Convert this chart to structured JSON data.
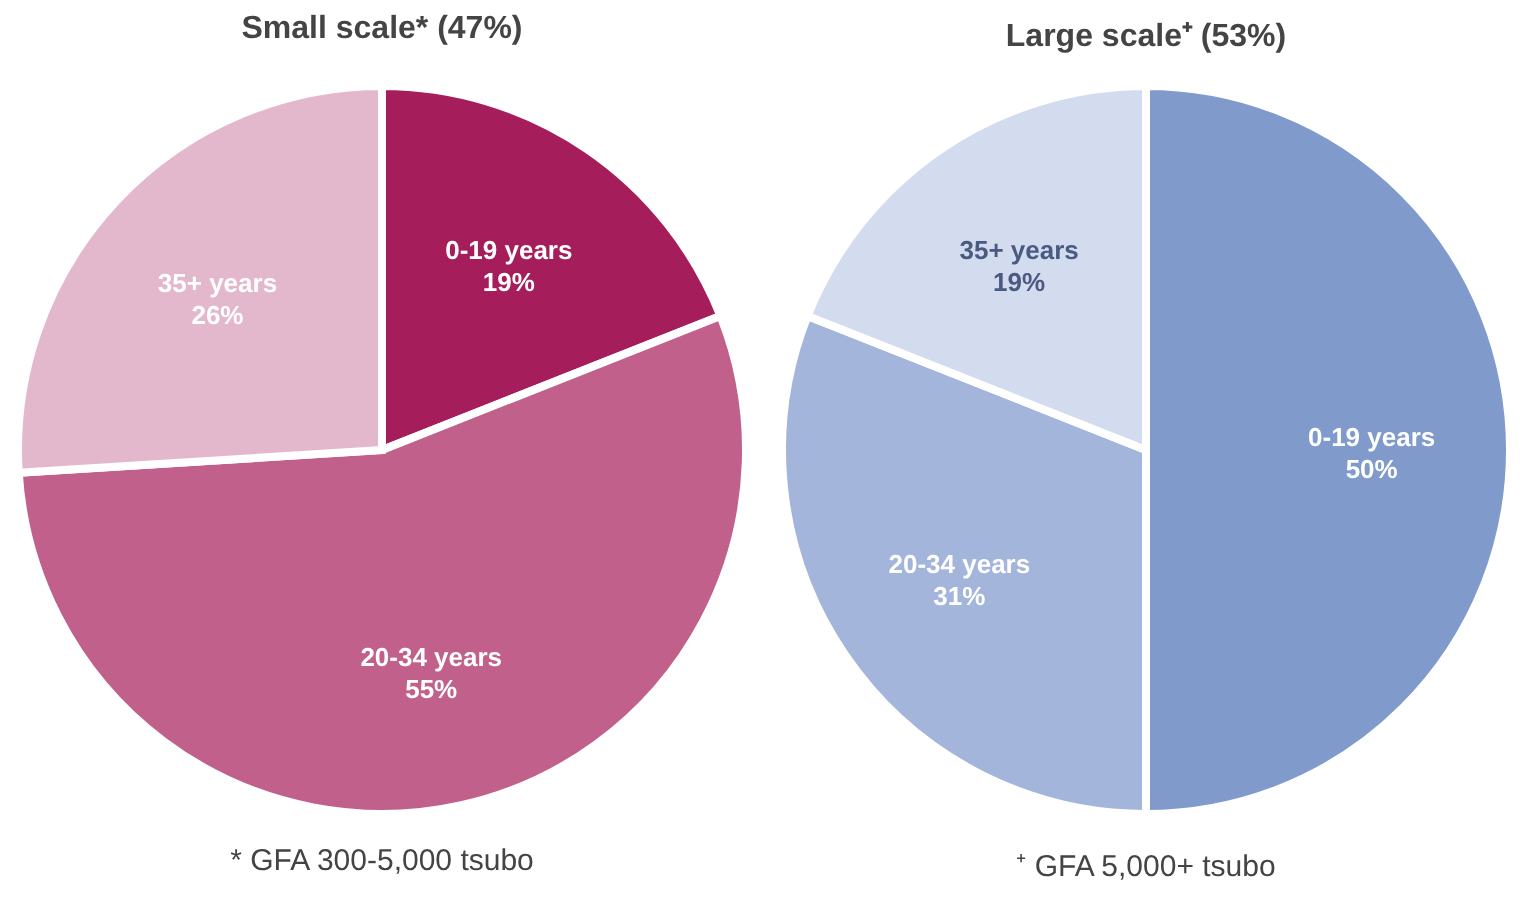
{
  "chart_data": [
    {
      "type": "pie",
      "title": "Small scale* (47%)",
      "categories": [
        "0-19 years",
        "20-34 years",
        "35+ years"
      ],
      "values": [
        19,
        55,
        26
      ],
      "value_labels": [
        "19%",
        "55%",
        "26%"
      ],
      "colors": [
        "#a51d5a",
        "#c0608b",
        "#e3b8cd"
      ],
      "annotations": [
        "* GFA 300-5,000 tsubo"
      ]
    },
    {
      "type": "pie",
      "title": "Large scale⁺ (53%)",
      "categories": [
        "0-19 years",
        "20-34 years",
        "35+ years"
      ],
      "values": [
        50,
        31,
        19
      ],
      "value_labels": [
        "50%",
        "31%",
        "19%"
      ],
      "colors": [
        "#7f9acb",
        "#a3b5da",
        "#d3dbee"
      ],
      "annotations": [
        "⁺ GFA 5,000+ tsubo"
      ]
    }
  ]
}
